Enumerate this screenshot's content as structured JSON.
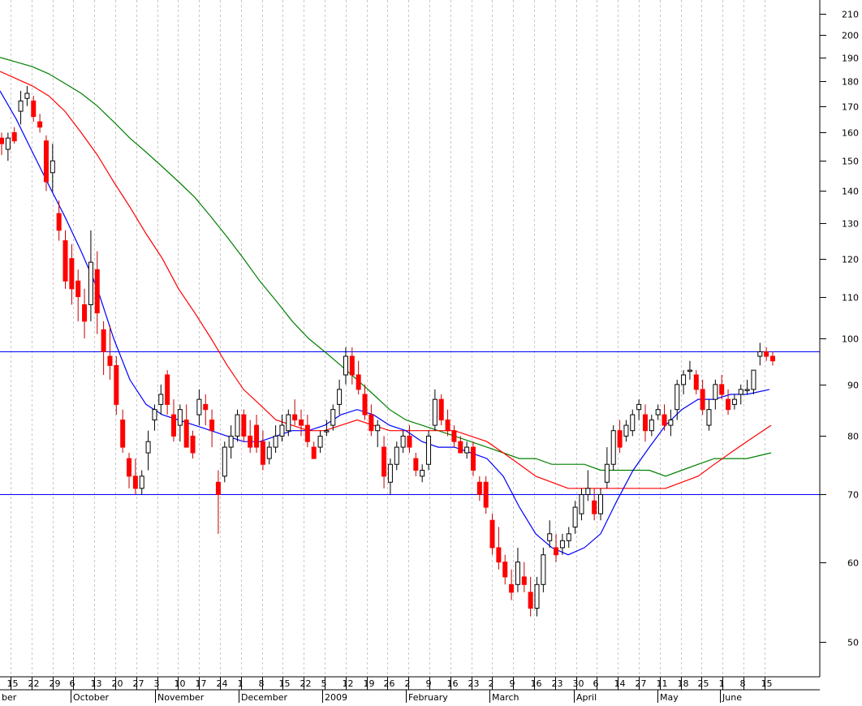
{
  "chart_data": {
    "type": "candlestick",
    "y_scale": "log",
    "ylim": [
      45,
      212
    ],
    "y_ticks": [
      50,
      60,
      70,
      80,
      90,
      100,
      110,
      120,
      130,
      140,
      150,
      160,
      170,
      180,
      190,
      200,
      210
    ],
    "x_day_labels": [
      "15",
      "22",
      "29",
      "6",
      "13",
      "20",
      "27",
      "3",
      "10",
      "17",
      "24",
      "1",
      "8",
      "15",
      "22",
      "5",
      "12",
      "19",
      "26",
      "2",
      "9",
      "16",
      "23",
      "2",
      "9",
      "16",
      "23",
      "30",
      "6",
      "14",
      "27",
      "11",
      "18",
      "25",
      "1",
      "8",
      "15"
    ],
    "x_month_labels": [
      "ber",
      "October",
      "November",
      "December",
      "2009",
      "February",
      "March",
      "April",
      "May",
      "June"
    ],
    "horizontal_lines": [
      97,
      70
    ],
    "colors": {
      "up_candle": "#ffffff",
      "down_candle": "#ff0000",
      "wick": "#000000",
      "ma_short": "#0000ff",
      "ma_mid": "#ff0000",
      "ma_long": "#008000",
      "hline": "#0000ff",
      "grid": "#c8c8c8"
    },
    "candles": [
      [
        158,
        160,
        152,
        156
      ],
      [
        154,
        160,
        150,
        158
      ],
      [
        160,
        162,
        156,
        157
      ],
      [
        168,
        176,
        163,
        172
      ],
      [
        173,
        178,
        170,
        175
      ],
      [
        172,
        174,
        164,
        166
      ],
      [
        164,
        167,
        160,
        162
      ],
      [
        157,
        159,
        140,
        143
      ],
      [
        146,
        156,
        140,
        150
      ],
      [
        133,
        137,
        125,
        128
      ],
      [
        125,
        128,
        112,
        114
      ],
      [
        120,
        124,
        108,
        112
      ],
      [
        114,
        117,
        104,
        110
      ],
      [
        108,
        112,
        100,
        104
      ],
      [
        108,
        128,
        104,
        119
      ],
      [
        117,
        122,
        101,
        106
      ],
      [
        102,
        104,
        92,
        97
      ],
      [
        96,
        103,
        91,
        94
      ],
      [
        94,
        96,
        84,
        86
      ],
      [
        83,
        85,
        77,
        78
      ],
      [
        76,
        77,
        71,
        73
      ],
      [
        73,
        76,
        70,
        71
      ],
      [
        71,
        74,
        70,
        73
      ],
      [
        77,
        81,
        74,
        79
      ],
      [
        83,
        86,
        81,
        85
      ],
      [
        86,
        90,
        84,
        88
      ],
      [
        92,
        93,
        84,
        86
      ],
      [
        84,
        87,
        79,
        80
      ],
      [
        82,
        86,
        79,
        85
      ],
      [
        83,
        86,
        78,
        78
      ],
      [
        80,
        81,
        76,
        77
      ],
      [
        84,
        89,
        82,
        87
      ],
      [
        86,
        88,
        82,
        85
      ],
      [
        83,
        85,
        78,
        81
      ],
      [
        72,
        74,
        64,
        70
      ],
      [
        73,
        79,
        72,
        78
      ],
      [
        78,
        82,
        76,
        80
      ],
      [
        80,
        85,
        79,
        84
      ],
      [
        84,
        85,
        79,
        80
      ],
      [
        80,
        83,
        77,
        78
      ],
      [
        82,
        84,
        77,
        78
      ],
      [
        79,
        81,
        74,
        75
      ],
      [
        76,
        79,
        75,
        78
      ],
      [
        78,
        82,
        77,
        80
      ],
      [
        80,
        84,
        79,
        82
      ],
      [
        81,
        85,
        80,
        84
      ],
      [
        84,
        87,
        82,
        83
      ],
      [
        83,
        85,
        80,
        82
      ],
      [
        82,
        84,
        78,
        79
      ],
      [
        78,
        79,
        76,
        76
      ],
      [
        78,
        81,
        77,
        80
      ],
      [
        81,
        83,
        80,
        81
      ],
      [
        82,
        86,
        81,
        85
      ],
      [
        86,
        91,
        84,
        89
      ],
      [
        92,
        98,
        90,
        96
      ],
      [
        96,
        98,
        90,
        92
      ],
      [
        92,
        95,
        88,
        89
      ],
      [
        88,
        90,
        83,
        84
      ],
      [
        84,
        86,
        80,
        81
      ],
      [
        81,
        83,
        78,
        82
      ],
      [
        78,
        80,
        71,
        73
      ],
      [
        72,
        76,
        70,
        75
      ],
      [
        75,
        79,
        74,
        78
      ],
      [
        78,
        81,
        77,
        80
      ],
      [
        80,
        82,
        77,
        78
      ],
      [
        76,
        77,
        73,
        74
      ],
      [
        73,
        75,
        72,
        74
      ],
      [
        75,
        81,
        74,
        80
      ],
      [
        82,
        89,
        81,
        87
      ],
      [
        87,
        88,
        82,
        83
      ],
      [
        83,
        85,
        80,
        81
      ],
      [
        81,
        82,
        78,
        79
      ],
      [
        79,
        80,
        77,
        77
      ],
      [
        77,
        79,
        76,
        78
      ],
      [
        78,
        79,
        73,
        74
      ],
      [
        72,
        73,
        69,
        70
      ],
      [
        72,
        73,
        67,
        68
      ],
      [
        66,
        67,
        61,
        62
      ],
      [
        62,
        65,
        59,
        60
      ],
      [
        60,
        61,
        57,
        58
      ],
      [
        57,
        59,
        55,
        56
      ],
      [
        57,
        62,
        56,
        60
      ],
      [
        58,
        60,
        56,
        57
      ],
      [
        56,
        58,
        53,
        54
      ],
      [
        54,
        58,
        53,
        57
      ],
      [
        57,
        62,
        56,
        61
      ],
      [
        63,
        66,
        62,
        64
      ],
      [
        62,
        64,
        60,
        61
      ],
      [
        62,
        64,
        61,
        63
      ],
      [
        63,
        65,
        62,
        64
      ],
      [
        65,
        69,
        64,
        68
      ],
      [
        67,
        71,
        66,
        70
      ],
      [
        70,
        74,
        69,
        71
      ],
      [
        69,
        71,
        66,
        67
      ],
      [
        67,
        71,
        66,
        70
      ],
      [
        72,
        78,
        71,
        75
      ],
      [
        75,
        82,
        74,
        81
      ],
      [
        81,
        83,
        77,
        78
      ],
      [
        80,
        83,
        79,
        82
      ],
      [
        81,
        85,
        80,
        84
      ],
      [
        85,
        87,
        83,
        86
      ],
      [
        84,
        86,
        79,
        81
      ],
      [
        81,
        84,
        80,
        83
      ],
      [
        84,
        86,
        83,
        85
      ],
      [
        84,
        86,
        81,
        82
      ],
      [
        82,
        85,
        80,
        83
      ],
      [
        85,
        91,
        83,
        90
      ],
      [
        90,
        93,
        88,
        92
      ],
      [
        93,
        95,
        91,
        93
      ],
      [
        92,
        93,
        88,
        89
      ],
      [
        89,
        91,
        84,
        85
      ],
      [
        82,
        87,
        81,
        85
      ],
      [
        87,
        91,
        85,
        90
      ],
      [
        90,
        92,
        87,
        88
      ],
      [
        87,
        89,
        84,
        85
      ],
      [
        86,
        88,
        85,
        87
      ],
      [
        88,
        90,
        86,
        89
      ],
      [
        89,
        91,
        88,
        89
      ],
      [
        89,
        93,
        88,
        93
      ],
      [
        96,
        99,
        94,
        97
      ],
      [
        97,
        98,
        95,
        96
      ],
      [
        96,
        97,
        94,
        95
      ]
    ],
    "ma_short": [
      [
        0,
        176
      ],
      [
        20,
        165
      ],
      [
        40,
        153
      ],
      [
        60,
        142
      ],
      [
        80,
        132
      ],
      [
        100,
        122
      ],
      [
        120,
        112
      ],
      [
        140,
        100
      ],
      [
        160,
        91
      ],
      [
        180,
        86
      ],
      [
        200,
        84
      ],
      [
        220,
        83
      ],
      [
        240,
        82
      ],
      [
        260,
        81
      ],
      [
        280,
        80
      ],
      [
        300,
        79
      ],
      [
        320,
        79
      ],
      [
        340,
        80
      ],
      [
        360,
        81
      ],
      [
        380,
        81
      ],
      [
        400,
        82
      ],
      [
        420,
        84
      ],
      [
        440,
        85
      ],
      [
        460,
        84
      ],
      [
        480,
        82
      ],
      [
        500,
        81
      ],
      [
        520,
        79
      ],
      [
        540,
        78
      ],
      [
        560,
        78
      ],
      [
        580,
        77
      ],
      [
        600,
        76
      ],
      [
        620,
        73
      ],
      [
        640,
        68
      ],
      [
        660,
        64
      ],
      [
        680,
        62
      ],
      [
        700,
        61
      ],
      [
        720,
        62
      ],
      [
        740,
        64
      ],
      [
        760,
        69
      ],
      [
        780,
        74
      ],
      [
        800,
        78
      ],
      [
        820,
        82
      ],
      [
        840,
        85
      ],
      [
        860,
        87
      ],
      [
        880,
        87
      ],
      [
        900,
        88
      ],
      [
        920,
        88
      ],
      [
        948,
        89
      ]
    ],
    "ma_mid": [
      [
        0,
        184
      ],
      [
        20,
        181
      ],
      [
        40,
        178
      ],
      [
        60,
        174
      ],
      [
        80,
        168
      ],
      [
        100,
        160
      ],
      [
        120,
        152
      ],
      [
        140,
        143
      ],
      [
        160,
        135
      ],
      [
        180,
        127
      ],
      [
        200,
        120
      ],
      [
        220,
        112
      ],
      [
        240,
        106
      ],
      [
        260,
        100
      ],
      [
        280,
        94
      ],
      [
        300,
        89
      ],
      [
        320,
        86
      ],
      [
        340,
        83
      ],
      [
        360,
        82
      ],
      [
        380,
        81
      ],
      [
        400,
        81
      ],
      [
        420,
        82
      ],
      [
        440,
        83
      ],
      [
        460,
        82
      ],
      [
        480,
        81
      ],
      [
        500,
        81
      ],
      [
        520,
        81
      ],
      [
        540,
        81
      ],
      [
        560,
        81
      ],
      [
        580,
        80
      ],
      [
        600,
        79
      ],
      [
        620,
        77
      ],
      [
        640,
        75
      ],
      [
        660,
        73
      ],
      [
        680,
        72
      ],
      [
        700,
        71
      ],
      [
        720,
        71
      ],
      [
        740,
        71
      ],
      [
        760,
        71
      ],
      [
        780,
        71
      ],
      [
        800,
        71
      ],
      [
        820,
        71
      ],
      [
        840,
        72
      ],
      [
        860,
        73
      ],
      [
        880,
        75
      ],
      [
        900,
        77
      ],
      [
        920,
        79
      ],
      [
        950,
        82
      ]
    ],
    "ma_long": [
      [
        0,
        190
      ],
      [
        20,
        188
      ],
      [
        40,
        186
      ],
      [
        60,
        183
      ],
      [
        80,
        179
      ],
      [
        100,
        175
      ],
      [
        120,
        170
      ],
      [
        140,
        164
      ],
      [
        160,
        158
      ],
      [
        180,
        153
      ],
      [
        200,
        148
      ],
      [
        220,
        143
      ],
      [
        240,
        138
      ],
      [
        260,
        132
      ],
      [
        280,
        126
      ],
      [
        300,
        120
      ],
      [
        320,
        114
      ],
      [
        340,
        109
      ],
      [
        360,
        104
      ],
      [
        380,
        100
      ],
      [
        400,
        97
      ],
      [
        420,
        94
      ],
      [
        440,
        91
      ],
      [
        460,
        88
      ],
      [
        480,
        85
      ],
      [
        500,
        83
      ],
      [
        520,
        82
      ],
      [
        540,
        81
      ],
      [
        560,
        80
      ],
      [
        580,
        79
      ],
      [
        600,
        78
      ],
      [
        620,
        77
      ],
      [
        640,
        76
      ],
      [
        660,
        76
      ],
      [
        680,
        75
      ],
      [
        700,
        75
      ],
      [
        720,
        75
      ],
      [
        740,
        74
      ],
      [
        760,
        74
      ],
      [
        780,
        74
      ],
      [
        800,
        74
      ],
      [
        820,
        73
      ],
      [
        840,
        74
      ],
      [
        860,
        75
      ],
      [
        880,
        76
      ],
      [
        900,
        76
      ],
      [
        920,
        76
      ],
      [
        950,
        77
      ]
    ]
  }
}
